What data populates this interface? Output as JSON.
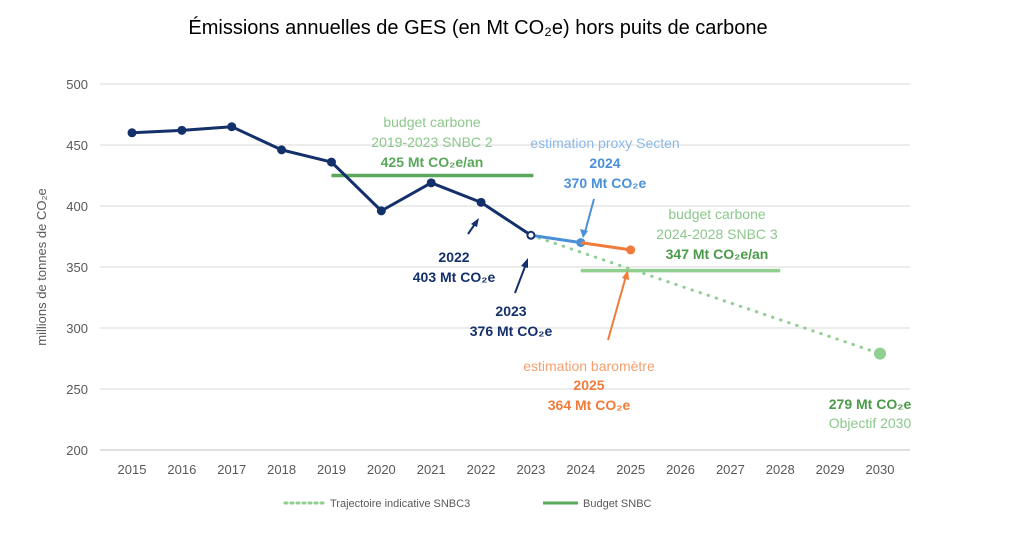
{
  "chart_data": {
    "type": "line",
    "title": "Émissions annuelles de GES (en Mt CO₂e) hors puits de carbone",
    "xlabel": "",
    "ylabel": "millions de tonnes de CO₂e",
    "ylim": [
      200,
      500
    ],
    "yticks": [
      200,
      250,
      300,
      350,
      400,
      450,
      500
    ],
    "xlim": [
      2015,
      2030
    ],
    "xticks": [
      2015,
      2016,
      2017,
      2018,
      2019,
      2020,
      2021,
      2022,
      2023,
      2024,
      2025,
      2026,
      2027,
      2028,
      2029,
      2030
    ],
    "grid": true,
    "legend_position": "bottom",
    "series": [
      {
        "key": "historical",
        "x": [
          2015,
          2016,
          2017,
          2018,
          2019,
          2020,
          2021,
          2022,
          2023
        ],
        "y": [
          460,
          462,
          465,
          446,
          436,
          396,
          419,
          403,
          376
        ],
        "color": "#14306b",
        "style": "solid-markers"
      },
      {
        "key": "secten",
        "x": [
          2023,
          2024
        ],
        "y": [
          376,
          370
        ],
        "color": "#4a90d9",
        "style": "solid-marker-end"
      },
      {
        "key": "barometre",
        "x": [
          2024,
          2025
        ],
        "y": [
          370,
          364
        ],
        "color": "#f07b3a",
        "style": "solid-marker-end"
      },
      {
        "name": "Trajectoire indicative SNBC3",
        "x": [
          2023,
          2030
        ],
        "y": [
          376,
          279
        ],
        "color": "#8fcf8f",
        "style": "dotted"
      },
      {
        "name": "Budget SNBC",
        "segments": [
          {
            "x": [
              2019,
              2023.05
            ],
            "y": 425,
            "color": "#5aa85a"
          },
          {
            "x": [
              2024,
              2028
            ],
            "y": 347,
            "color": "#8fcf8f"
          }
        ],
        "style": "solid"
      }
    ],
    "annotations": {
      "snbc2": {
        "line1": "budget carbone",
        "line2": "2019-2023 SNBC 2",
        "value": "425 Mt CO₂e/an"
      },
      "a2022": {
        "year": "2022",
        "value": "403 Mt CO₂e"
      },
      "a2023": {
        "year": "2023",
        "value": "376 Mt CO₂e"
      },
      "a2024": {
        "label": "estimation proxy Secten",
        "year": "2024",
        "value": "370 Mt CO₂e"
      },
      "snbc3": {
        "line1": "budget carbone",
        "line2": "2024-2028 SNBC 3",
        "value": "347 Mt CO₂e/an"
      },
      "a2025": {
        "label": "estimation baromètre",
        "year": "2025",
        "value": "364 Mt CO₂e"
      },
      "a2030": {
        "value": "279 Mt CO₂e",
        "label": "Objectif 2030"
      }
    },
    "colors": {
      "navy": "#14306b",
      "blue": "#4a90d9",
      "orange": "#f07b3a",
      "green": "#5aa85a",
      "lightgreen": "#8fcf8f"
    }
  }
}
